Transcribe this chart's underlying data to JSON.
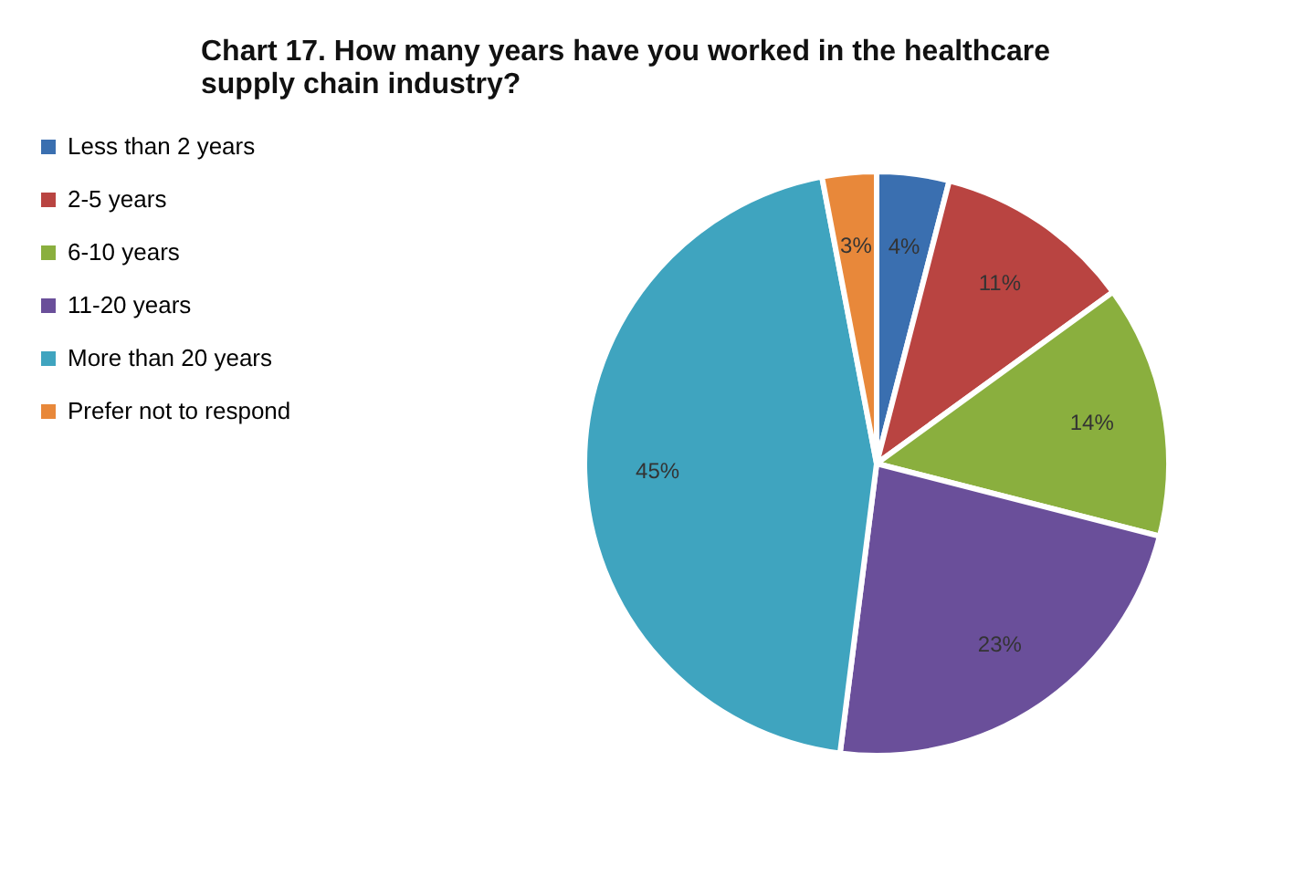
{
  "chart_data": {
    "type": "pie",
    "title": "Chart 17. How many years have you worked in the healthcare supply chain industry?",
    "categories": [
      "Less than 2 years",
      "2-5 years",
      "6-10 years",
      "11-20 years",
      "More than 20 years",
      "Prefer not to respond"
    ],
    "values": [
      4,
      11,
      14,
      23,
      45,
      3
    ],
    "value_labels": [
      "4%",
      "11%",
      "14%",
      "23%",
      "45%",
      "3%"
    ],
    "colors": [
      "#3a6fb0",
      "#b94441",
      "#8aaf3e",
      "#6a4f9a",
      "#3fa4bf",
      "#e8883a"
    ],
    "legend": "left"
  }
}
